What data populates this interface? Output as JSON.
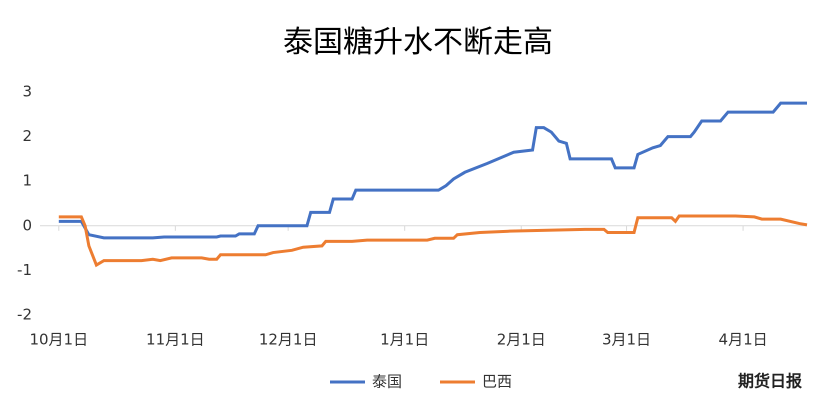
{
  "chart_data": {
    "type": "line",
    "title": "泰国糖升水不断走高",
    "watermark": "期货日报",
    "xlim": [
      -5,
      199
    ],
    "ylim": [
      -2,
      3
    ],
    "yticks": [
      -2,
      -1,
      0,
      1,
      2,
      3
    ],
    "xticks": [
      {
        "value": 0,
        "label": "10月1日"
      },
      {
        "value": 31,
        "label": "11月1日"
      },
      {
        "value": 61,
        "label": "12月1日"
      },
      {
        "value": 92,
        "label": "1月1日"
      },
      {
        "value": 123,
        "label": "2月1日"
      },
      {
        "value": 151,
        "label": "3月1日"
      },
      {
        "value": 182,
        "label": "4月1日"
      }
    ],
    "legend": "bottom",
    "series": [
      {
        "name": "泰国",
        "color": "#4472c4",
        "x": [
          0,
          6,
          8,
          12,
          25,
          28,
          42,
          43,
          47,
          48,
          52,
          53,
          66,
          67,
          72,
          73,
          78,
          79,
          101,
          103,
          105,
          108,
          114,
          121,
          126,
          127,
          129,
          131,
          133,
          135,
          136,
          147,
          148,
          153,
          154,
          158,
          160,
          162,
          168,
          169,
          171,
          176,
          178,
          190,
          192,
          199
        ],
        "values": [
          0.1,
          0.1,
          -0.2,
          -0.27,
          -0.27,
          -0.25,
          -0.25,
          -0.23,
          -0.23,
          -0.18,
          -0.18,
          0.0,
          0.0,
          0.3,
          0.3,
          0.6,
          0.6,
          0.8,
          0.8,
          0.9,
          1.05,
          1.2,
          1.4,
          1.65,
          1.7,
          2.2,
          2.2,
          2.1,
          1.9,
          1.85,
          1.5,
          1.5,
          1.3,
          1.3,
          1.6,
          1.75,
          1.8,
          2.0,
          2.0,
          2.1,
          2.35,
          2.35,
          2.55,
          2.55,
          2.75,
          2.75
        ]
      },
      {
        "name": "巴西",
        "color": "#ed7d31",
        "x": [
          0,
          6,
          7,
          8,
          10,
          12,
          22,
          25,
          27,
          30,
          38,
          40,
          42,
          43,
          55,
          57,
          62,
          65,
          70,
          71,
          78,
          82,
          98,
          100,
          105,
          106,
          112,
          120,
          130,
          140,
          145,
          146,
          153,
          154,
          163,
          164,
          165,
          180,
          185,
          187,
          192,
          197,
          199
        ],
        "values": [
          0.2,
          0.2,
          0.0,
          -0.45,
          -0.88,
          -0.78,
          -0.78,
          -0.75,
          -0.78,
          -0.72,
          -0.72,
          -0.75,
          -0.75,
          -0.65,
          -0.65,
          -0.6,
          -0.55,
          -0.48,
          -0.45,
          -0.35,
          -0.35,
          -0.32,
          -0.32,
          -0.28,
          -0.28,
          -0.2,
          -0.15,
          -0.12,
          -0.1,
          -0.08,
          -0.08,
          -0.15,
          -0.15,
          0.18,
          0.18,
          0.1,
          0.22,
          0.22,
          0.2,
          0.15,
          0.15,
          0.05,
          0.02
        ]
      }
    ]
  }
}
